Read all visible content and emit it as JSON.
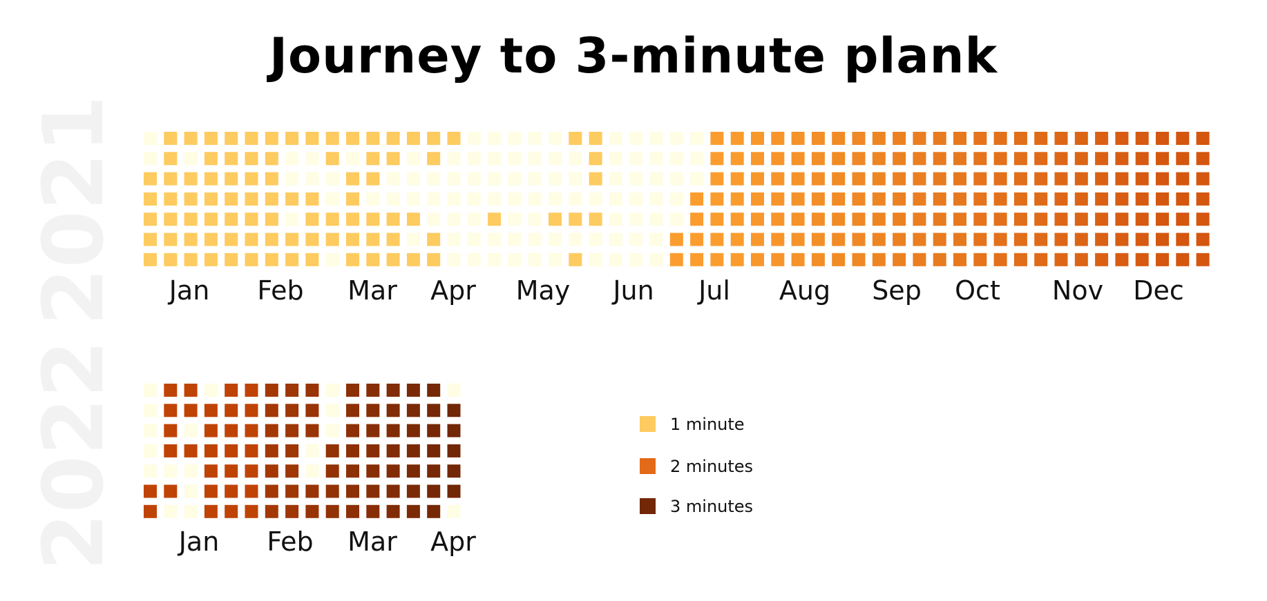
{
  "chart_data": {
    "type": "heatmap",
    "title": "Journey to 3-minute plank",
    "colors": {
      "empty": "#FFFDE3",
      "1 minute": "#FDCB5F",
      "1 minute (later)": "#FB9D2E",
      "2 minutes": "#E36A18",
      "2 minutes (later)": "#D4560F",
      "3 minutes": "#C04306",
      "3 minutes (later)": "#722706"
    },
    "legend": {
      "placement": "center-right",
      "items": [
        {
          "label": "1 minute",
          "color": "#FDCB5F"
        },
        {
          "label": "2 minutes",
          "color": "#E36A18"
        },
        {
          "label": "3 minutes",
          "color": "#722706"
        }
      ]
    },
    "calendars": [
      {
        "year": "2021",
        "months": [
          "Jan",
          "Feb",
          "Mar",
          "Apr",
          "May",
          "Jun",
          "Jul",
          "Aug",
          "Sep",
          "Oct",
          "Nov",
          "Dec"
        ],
        "grid_legend": "rows = 7 weekdays, columns = 53 weeks; 0 = no plank, 1 = 1-minute level, 2 = 2-minute level (shades: 1..7 from light to dark)",
        "weeks": [
          "0011111",
          "1111111",
          "1011111",
          "1111111",
          "1111111",
          "1111111",
          "1111111",
          "1001011",
          "1001111",
          "1100110",
          "1011111",
          "1110111",
          "1100111",
          "1000101",
          "1100011",
          "1000000",
          "0000000",
          "0000100",
          "0000000",
          "0000000",
          "0000100",
          "1000101",
          "1110100",
          "0000000",
          "0000000",
          "0000000",
          "0000022",
          "0002222",
          "2222222",
          "2222222",
          "2222222",
          "2222222",
          "2222222",
          "2222222",
          "2222222",
          "2222222",
          "2222222",
          "2222222",
          "2222222",
          "2222222",
          "2222222",
          "2222222",
          "2222222",
          "2222222",
          "2222222",
          "2222222",
          "2222222",
          "2222222",
          "2222222",
          "2222222",
          "2222222",
          "2222222",
          "2222222"
        ]
      },
      {
        "year": "2022",
        "months": [
          "Jan",
          "Feb",
          "Mar",
          "Apr"
        ],
        "weeks": [
          "0000011",
          "1111010",
          "1101000",
          "0111111",
          "1111111",
          "1111111",
          "1111111",
          "1111111",
          "1110011",
          "0001111",
          "1111111",
          "1111111",
          "1111111",
          "1111111",
          "1111111",
          "0111110"
        ]
      }
    ]
  }
}
